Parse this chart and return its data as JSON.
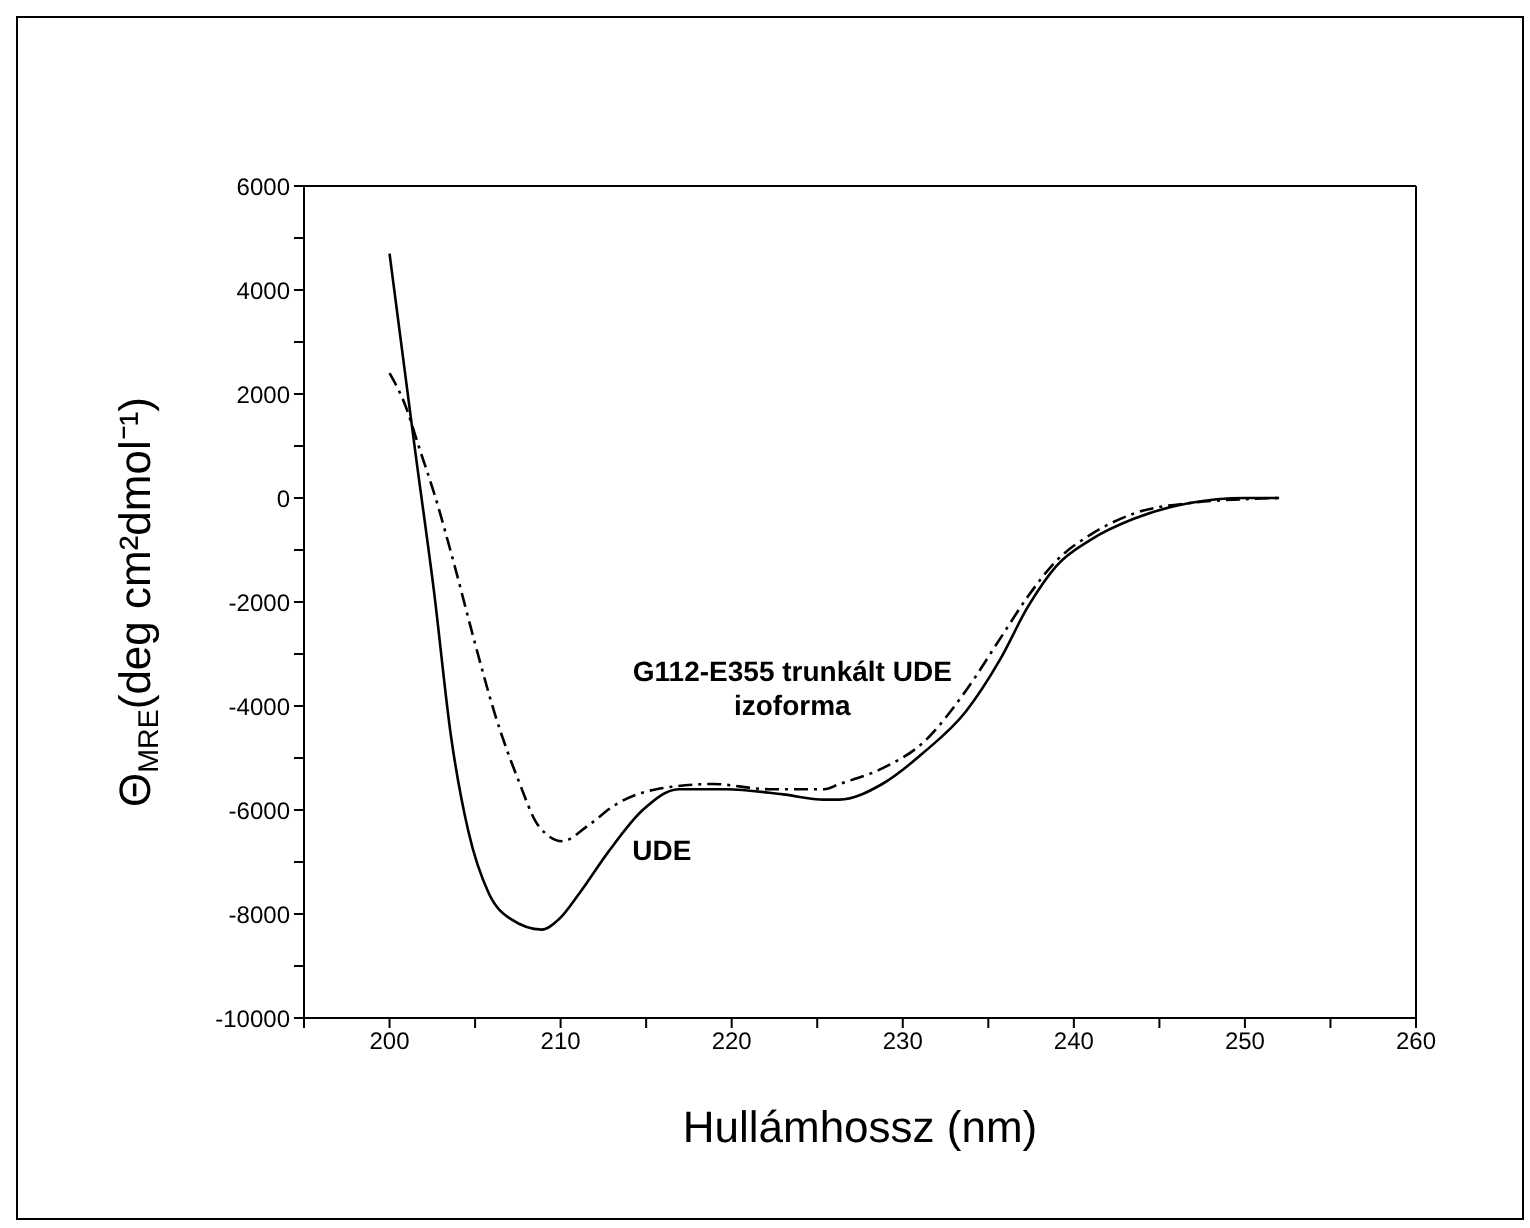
{
  "chart_data": {
    "type": "line",
    "xlabel": "Hullámhossz (nm)",
    "ylabel": "Θ$_{MRE}$(deg cm²dmol⁻¹)",
    "xlim": [
      195,
      260
    ],
    "xticks": [
      {
        "value": 195,
        "label": null
      },
      200,
      {
        "value": 205,
        "label": null
      },
      210,
      {
        "value": 215,
        "label": null
      },
      220,
      {
        "value": 225,
        "label": null
      },
      230,
      {
        "value": 235,
        "label": null
      },
      240,
      {
        "value": 245,
        "label": null
      },
      250,
      {
        "value": 255,
        "label": null
      },
      260
    ],
    "ylim": [
      -10000,
      6000
    ],
    "yticks": [
      -10000,
      {
        "value": -9000,
        "label": null
      },
      -8000,
      {
        "value": -7000,
        "label": null
      },
      -6000,
      {
        "value": -5000,
        "label": null
      },
      -4000,
      {
        "value": -3000,
        "label": null
      },
      -2000,
      {
        "value": -1000,
        "label": null
      },
      0,
      {
        "value": 1000,
        "label": null
      },
      2000,
      {
        "value": 3000,
        "label": null
      },
      4000,
      {
        "value": 5000,
        "label": null
      },
      6000
    ],
    "marker": "none",
    "series": [
      {
        "name": "UDE",
        "color": "#000000",
        "line_style": "solid",
        "x": [
          200,
          201.5,
          202.6,
          203.6,
          204.6,
          205.8,
          207.1,
          208.9,
          209.9,
          211.1,
          212.8,
          214.8,
          216.9,
          219.7,
          223,
          225.4,
          226.3,
          228.8,
          231.2,
          233.7,
          235.7,
          237.3,
          239,
          241,
          243.5,
          246.7,
          250,
          252
        ],
        "values": [
          4700,
          900,
          -1800,
          -4600,
          -6400,
          -7600,
          -8100,
          -8300,
          -8100,
          -7600,
          -6800,
          -6000,
          -5600,
          -5600,
          -5700,
          -5800,
          -5800,
          -5500,
          -4900,
          -4100,
          -3100,
          -2100,
          -1300,
          -800,
          -400,
          -100,
          0,
          0
        ]
      },
      {
        "name": "G112-E355 trunkált UDE\nizoforma",
        "color": "#000000",
        "line_style": "dashed",
        "x": [
          200,
          200.9,
          201.8,
          202.6,
          203.8,
          205,
          206.2,
          207.5,
          208.7,
          210.1,
          211.6,
          213.2,
          215.6,
          218.9,
          222.2,
          225.4,
          226.3,
          228.8,
          231.2,
          233.7,
          235.7,
          237.3,
          239,
          241,
          243.5,
          246.7,
          252
        ],
        "values": [
          2400,
          1800,
          900,
          100,
          -1300,
          -2800,
          -4200,
          -5400,
          -6300,
          -6600,
          -6300,
          -5900,
          -5600,
          -5500,
          -5600,
          -5600,
          -5500,
          -5200,
          -4700,
          -3700,
          -2700,
          -1900,
          -1200,
          -700,
          -300,
          -100,
          0
        ]
      }
    ]
  }
}
